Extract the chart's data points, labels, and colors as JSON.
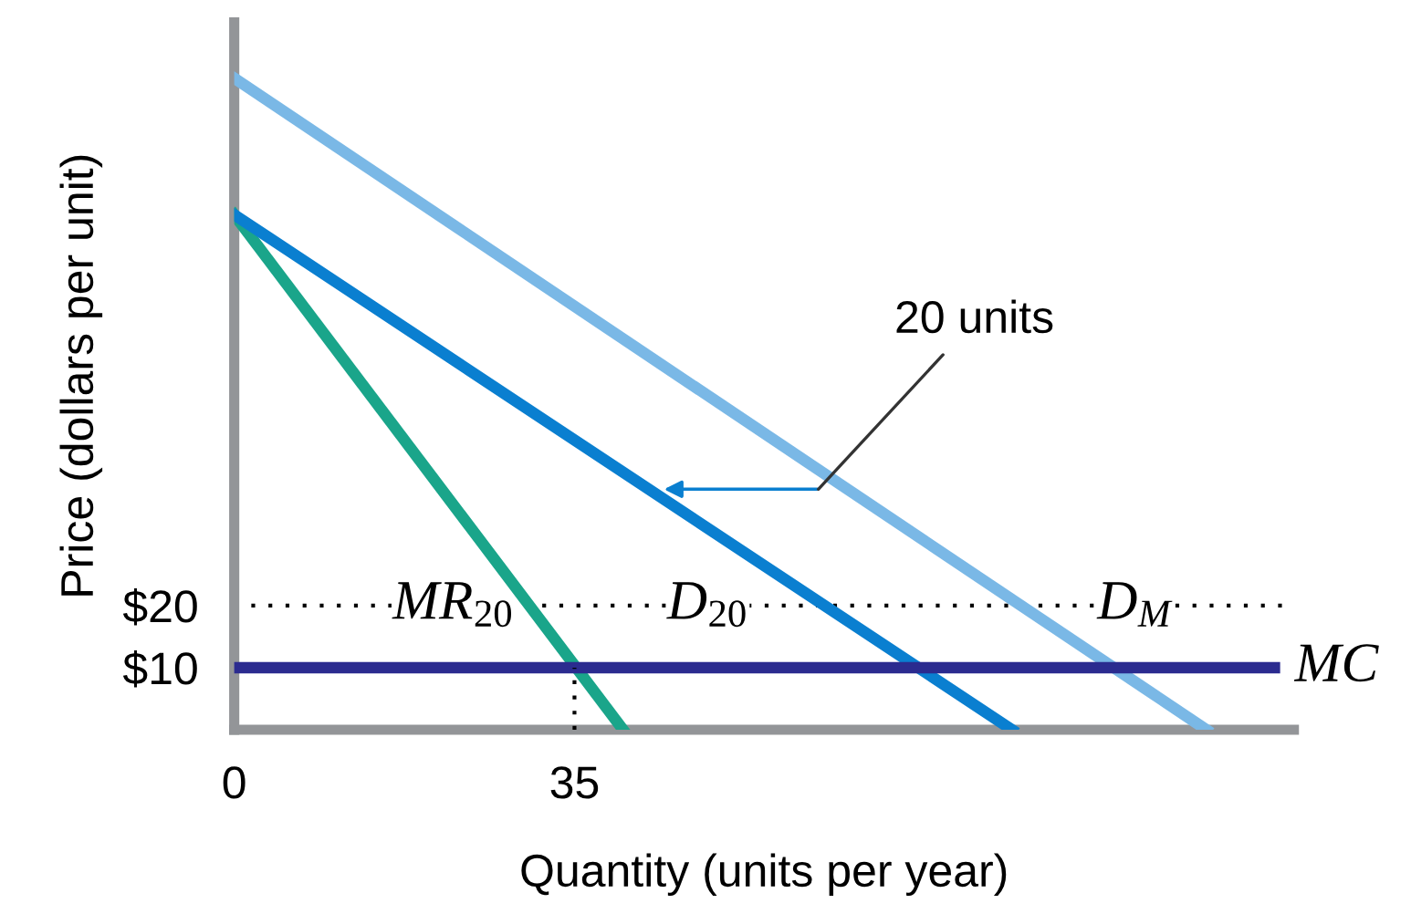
{
  "chart_data": {
    "type": "line",
    "xlabel": "Quantity (units per year)",
    "ylabel": "Price (dollars per unit)",
    "xlim": [
      0,
      109
    ],
    "ylim": [
      0,
      114
    ],
    "xticks": [
      0,
      35
    ],
    "yticks": [
      {
        "value": 10,
        "label": "$10"
      },
      {
        "value": 20,
        "label": "$20"
      }
    ],
    "grid": false,
    "marker": "none",
    "line_style": "solid",
    "series": [
      {
        "name": "MR$_{20}$",
        "color": "#1aa58a",
        "x": [
          0,
          40
        ],
        "values": [
          83,
          0
        ]
      },
      {
        "name": "D$_{20}$",
        "color": "#0a7fd0",
        "x": [
          0,
          80
        ],
        "values": [
          83,
          0
        ]
      },
      {
        "name": "D$_{M}$",
        "color": "#7ab8e6",
        "x": [
          0,
          100
        ],
        "values": [
          105,
          0
        ]
      },
      {
        "name": "MC",
        "color": "#2b2b8f",
        "x": [
          0,
          107
        ],
        "values": [
          10,
          10
        ]
      },
      {
        "color": "#000000",
        "x": [
          35,
          35
        ],
        "values": [
          0,
          10
        ],
        "line_style": "dotted"
      }
    ],
    "ref_lines": [
      {
        "axis": "y",
        "value": 20,
        "color": "#000000",
        "line_style": "dotted"
      }
    ],
    "annotations": [
      "20 units"
    ]
  }
}
